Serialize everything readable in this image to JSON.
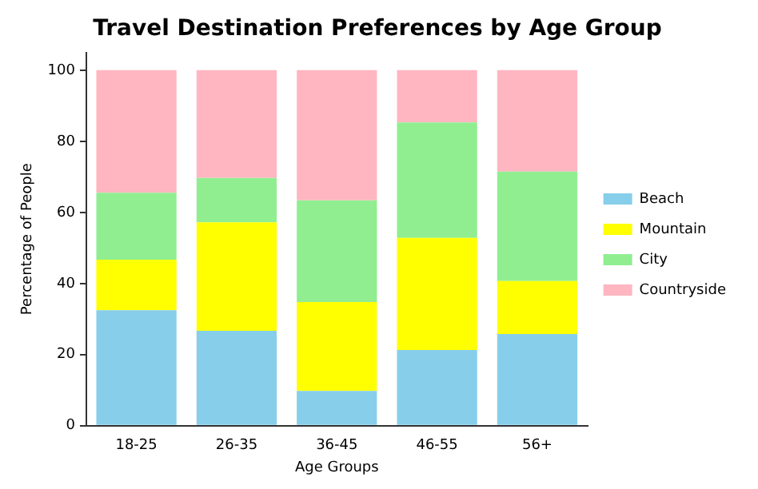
{
  "chart_data": {
    "type": "bar",
    "title": "Travel Destination Preferences by Age Group",
    "xlabel": "Age Groups",
    "ylabel": "Percentage of People",
    "categories": [
      "18-25",
      "26-35",
      "36-45",
      "46-55",
      "56+"
    ],
    "stacked": true,
    "series": [
      {
        "name": "Beach",
        "color": "#87ceeb",
        "values": [
          32.5,
          26.7,
          9.8,
          21.3,
          25.8
        ]
      },
      {
        "name": "Mountain",
        "color": "#ffff00",
        "values": [
          14.2,
          30.5,
          25.0,
          31.5,
          14.9
        ]
      },
      {
        "name": "City",
        "color": "#90ee90",
        "values": [
          18.8,
          12.5,
          28.6,
          32.5,
          30.8
        ]
      },
      {
        "name": "Countryside",
        "color": "#ffb6c1",
        "values": [
          34.5,
          30.3,
          36.6,
          14.7,
          28.5
        ]
      }
    ],
    "ylim": [
      0,
      105
    ],
    "yticks": [
      0,
      20,
      40,
      60,
      80,
      100
    ],
    "grid": false,
    "legend": "right"
  }
}
